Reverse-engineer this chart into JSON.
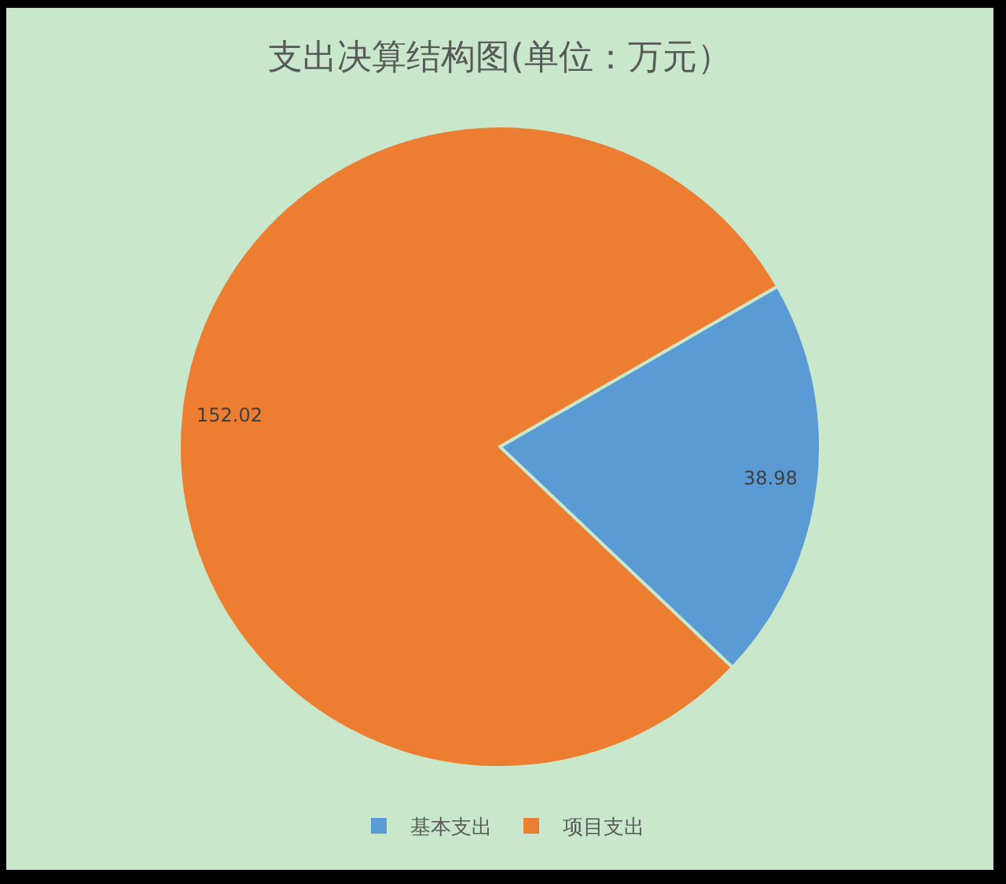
{
  "chart_data": {
    "type": "pie",
    "title": "支出决算结构图(单位：万元）",
    "categories": [
      "基本支出",
      "项目支出"
    ],
    "values": [
      38.98,
      152.02
    ],
    "colors": [
      "#5b9bd5",
      "#ed7d31"
    ],
    "data_labels": true,
    "legend": "bottom"
  }
}
